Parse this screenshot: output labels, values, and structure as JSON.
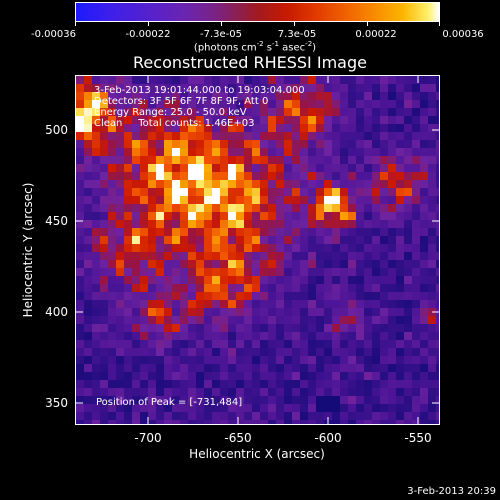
{
  "colorbar": {
    "tick_labels": [
      "-0.00036",
      "-0.00022",
      "-7.3e-05",
      "7.3e-05",
      "0.00022",
      "0.00036"
    ],
    "units_main": "(photons cm",
    "units_exp1": "-2",
    "units_mid": " s",
    "units_exp2": "-1",
    "units_mid2": " asec",
    "units_exp3": "-2",
    "units_end": ")"
  },
  "title": "Reconstructed RHESSI Image",
  "info": {
    "time_range": "3-Feb-2013 19:01:44.000 to 19:03:04.000",
    "detectors": "Detectors: 3F 5F 6F 7F 8F 9F, Att 0",
    "energy_range": "Energy Range: 25.0 - 50.0 keV",
    "clean_counts": "Clean     Total counts: 1.46E+03"
  },
  "peak_text": "Position of Peak = [-731,484]",
  "axes": {
    "xlabel": "Heliocentric X (arcsec)",
    "ylabel": "Heliocentric Y (arcsec)",
    "x_ticks": [
      "-700",
      "-650",
      "-600",
      "-550"
    ],
    "y_ticks": [
      "500",
      "450",
      "400",
      "350"
    ]
  },
  "timestamp": "3-Feb-2013 20:39",
  "colors": {
    "background": "#000000",
    "low": "#1d1aff",
    "mid": "#6a24b0",
    "hot": "#c71a00",
    "peak": "#ffffff"
  }
}
